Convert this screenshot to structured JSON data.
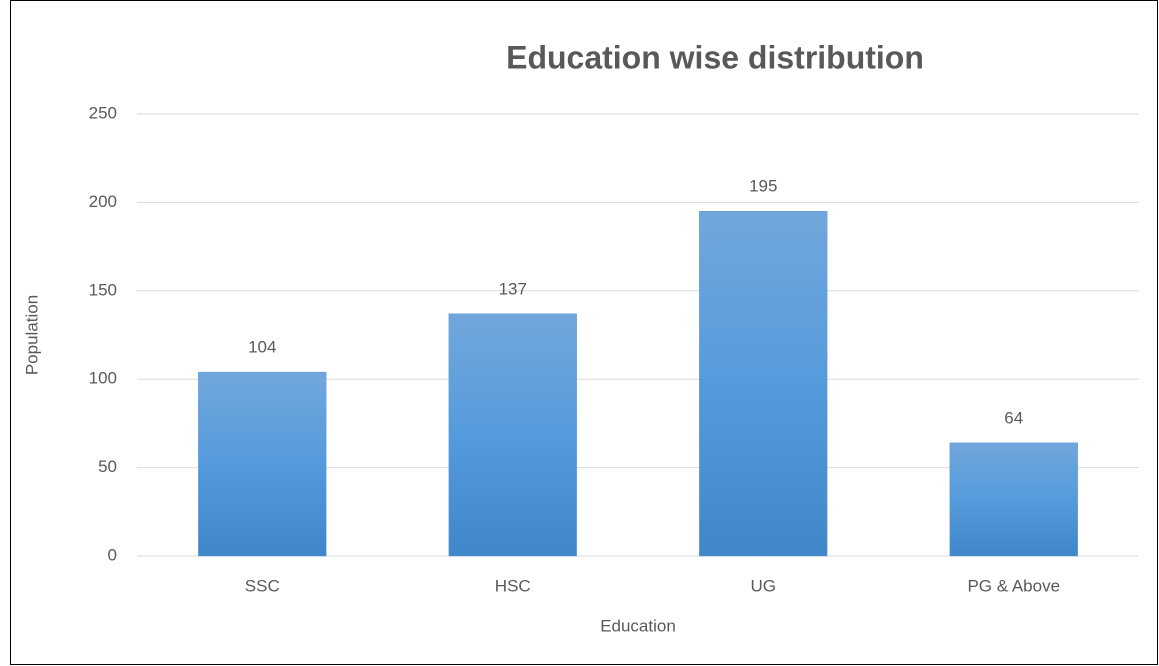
{
  "chart_data": {
    "type": "bar",
    "title": "Education wise distribution",
    "x_label": "Education",
    "y_label": "Population",
    "categories": [
      "SSC",
      "HSC",
      "UG",
      "PG & Above"
    ],
    "values": [
      104,
      137,
      195,
      64
    ],
    "color": "#5b9bd5",
    "ylim": [
      0,
      250
    ],
    "yticks": [
      0,
      50,
      100,
      150,
      200,
      250
    ],
    "grid": true
  }
}
